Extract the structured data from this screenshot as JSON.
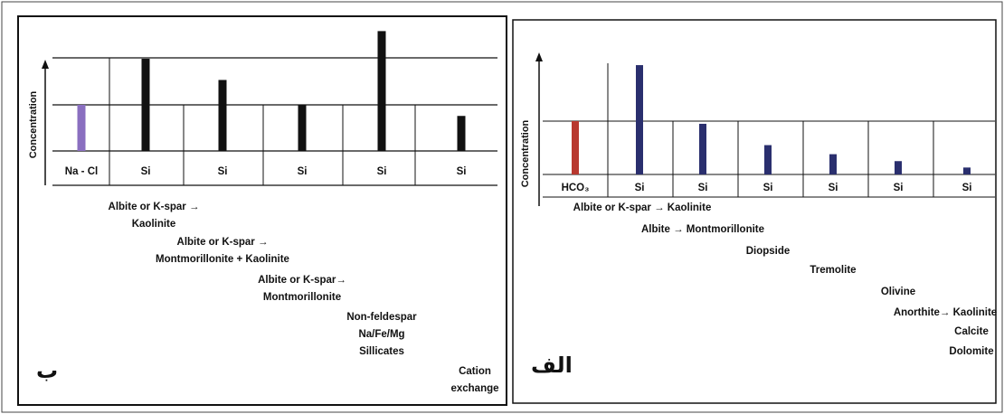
{
  "left_panel": {
    "tag": "ب",
    "y_label": "Concentration",
    "bars": [
      {
        "label": "Na - Cl",
        "level": 1.0,
        "color": "#8a6fc0"
      },
      {
        "label": "Si",
        "level": 2.0,
        "color": "#111111"
      },
      {
        "label": "Si",
        "level": 1.54,
        "color": "#111111"
      },
      {
        "label": "Si",
        "level": 1.0,
        "color": "#111111"
      },
      {
        "label": "Si",
        "level": 2.6,
        "color": "#111111"
      },
      {
        "label": "Si",
        "level": 0.76,
        "color": "#111111"
      }
    ],
    "processes": [
      [
        "Albite or K-spar  →",
        "Kaolinite"
      ],
      [
        "Albite or K-spar →",
        "Montmorillonite + Kaolinite"
      ],
      [
        "Albite or K-spar→",
        "Montmorillonite"
      ],
      [
        "Non-feldespar",
        "Na/Fe/Mg",
        "Sillicates"
      ],
      [
        "Cation",
        "exchange"
      ]
    ]
  },
  "right_panel": {
    "tag": "الف",
    "y_label": "Concentration",
    "bars": [
      {
        "label": "HCO₃",
        "level": 1.0,
        "color": "#b8382f"
      },
      {
        "label": "Si",
        "level": 2.05,
        "color": "#2a2f6e"
      },
      {
        "label": "Si",
        "level": 0.95,
        "color": "#2a2f6e"
      },
      {
        "label": "Si",
        "level": 0.55,
        "color": "#2a2f6e"
      },
      {
        "label": "Si",
        "level": 0.38,
        "color": "#2a2f6e"
      },
      {
        "label": "Si",
        "level": 0.25,
        "color": "#2a2f6e"
      },
      {
        "label": "Si",
        "level": 0.13,
        "color": "#2a2f6e"
      }
    ],
    "processes": [
      "Albite or K-spar → Kaolinite",
      "Albite → Montmorillonite",
      "Diopside",
      "Tremolite",
      "Olivine",
      "Anorthite→ Kaolinite",
      "Calcite",
      "Dolomite"
    ]
  }
}
